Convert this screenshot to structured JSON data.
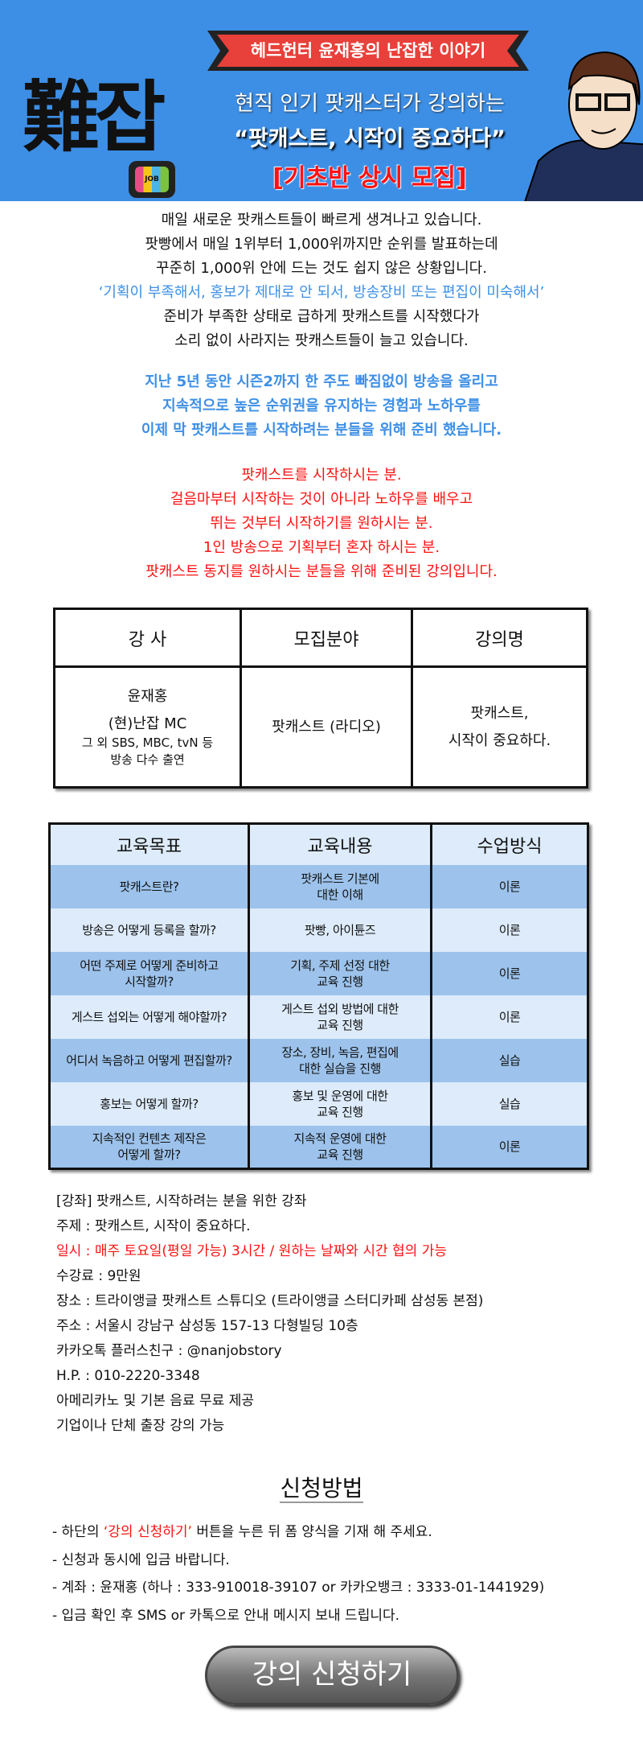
{
  "banner": {
    "logo_text": "難잡",
    "logo_tv_text": "JOB",
    "ribbon": "헤드헌터 윤재홍의 난잡한 이야기",
    "subtitle": "현직 인기 팟캐스터가 강의하는",
    "quote": "“팟캐스트, 시작이 중요하다”",
    "recruit": "[기초반 상시 모집]"
  },
  "intro": {
    "black_lines": [
      "매일 새로운 팟캐스트들이 빠르게 생겨나고 있습니다.",
      "팟빵에서 매일 1위부터 1,000위까지만 순위를 발표하는데",
      "꾸준히 1,000위 안에 드는 것도 쉽지 않은 상황입니다."
    ],
    "blue_line": "‘기획이 부족해서, 홍보가 제대로 안 되서, 방송장비 또는 편집이 미숙해서’",
    "black_lines2": [
      "준비가 부족한 상태로 급하게 팟캐스트를 시작했다가",
      "소리 없이 사라지는 팟캐스트들이 늘고 있습니다."
    ],
    "blue_bold": [
      "지난 5년 동안 시즌2까지 한 주도 빠짐없이 방송을 올리고",
      "지속적으로 높은 순위권을 유지하는 경험과 노하우를",
      "이제 막 팟캐스트를 시작하려는 분들을 위해 준비 했습니다."
    ],
    "red": [
      "팟캐스트를 시작하시는 분.",
      "걸음마부터 시작하는 것이 아니라 노하우를 배우고",
      "뛰는 것부터 시작하기를 원하시는 분.",
      "1인 방송으로 기획부터 혼자 하시는 분.",
      "팟캐스트 동지를 원하시는 분들을 위해 준비된 강의입니다."
    ]
  },
  "table1": {
    "headers": [
      "강 사",
      "모집분야",
      "강의명"
    ],
    "instructor": {
      "name": "윤재홍",
      "role": "(현)난잡 MC",
      "extra1": "그 외 SBS, MBC, tvN 등",
      "extra2": "방송 다수 출연"
    },
    "field": "팟캐스트 (라디오)",
    "course": {
      "line1": "팟캐스트,",
      "line2": "시작이 중요하다."
    }
  },
  "table2": {
    "headers": [
      "교육목표",
      "교육내용",
      "수업방식"
    ],
    "rows": [
      {
        "goal": [
          "팟캐스트란?"
        ],
        "content": [
          "팟캐스트 기본에",
          "대한 이해"
        ],
        "method": "이론"
      },
      {
        "goal": [
          "방송은 어떻게 등록을 할까?"
        ],
        "content": [
          "팟빵, 아이튠즈"
        ],
        "method": "이론"
      },
      {
        "goal": [
          "어떤 주제로 어떻게 준비하고",
          "시작할까?"
        ],
        "content": [
          "기획, 주제 선정 대한",
          "교육 진행"
        ],
        "method": "이론"
      },
      {
        "goal": [
          "게스트 섭외는 어떻게 해야할까?"
        ],
        "content": [
          "게스트 섭외 방법에 대한",
          "교육 진행"
        ],
        "method": "이론"
      },
      {
        "goal": [
          "어디서 녹음하고 어떻게 편집할까?"
        ],
        "content": [
          "장소, 장비, 녹음, 편집에",
          "대한 실습을 진행"
        ],
        "method": "실습"
      },
      {
        "goal": [
          "홍보는 어떻게 할까?"
        ],
        "content": [
          "홍보 및 운영에 대한",
          "교육 진행"
        ],
        "method": "실습"
      },
      {
        "goal": [
          "지속적인 컨텐츠 제작은",
          "어떻게 할까?"
        ],
        "content": [
          "지속적 운영에 대한",
          "교육 진행"
        ],
        "method": "이론"
      }
    ]
  },
  "info": {
    "course": "[강좌] 팟캐스트, 시작하려는 분을 위한 강좌",
    "topic": "주제 : 팟캐스트, 시작이 중요하다.",
    "schedule": "일시 : 매주 토요일(평일 가능) 3시간 / 원하는 날짜와 시간 협의 가능",
    "fee": "수강료 : 9만원",
    "place": "장소 : 트라이앵글 팟캐스트 스튜디오 (트라이앵글 스터디카페 삼성동 본점)",
    "address": "주소 : 서울시 강남구 삼성동 157-13 다형빌딩 10층",
    "kakao": "카카오톡 플러스친구 : @nanjobstory",
    "phone": "H.P. : 010-2220-3348",
    "drinks": "아메리카노 및 기본 음료 무료 제공",
    "corporate": "기업이나 단체 출장 강의 가능"
  },
  "howto": {
    "title": "신청방법",
    "item1_prefix": "- 하단의 ",
    "item1_highlight": "‘강의 신청하기’",
    "item1_suffix": " 버튼을 누른 뒤 폼 양식을 기재 해 주세요.",
    "item2": "- 신청과 동시에 입금 바랍니다.",
    "item3": "- 계좌 : 윤재홍 (하나 : 333-910018-39107 or 카카오뱅크 : 3333-01-1441929)",
    "item4": "- 입금 확인 후 SMS or 카톡으로 안내 메시지 보내 드립니다."
  },
  "apply_button": "강의 신청하기",
  "colors": {
    "banner_bg": "#3d8fe6",
    "ribbon": "#e8403a",
    "accent_blue": "#3d8fe6",
    "accent_red": "#ff1111",
    "table_dark_row": "#9dc3ec",
    "table_light_row": "#ddebfa"
  }
}
